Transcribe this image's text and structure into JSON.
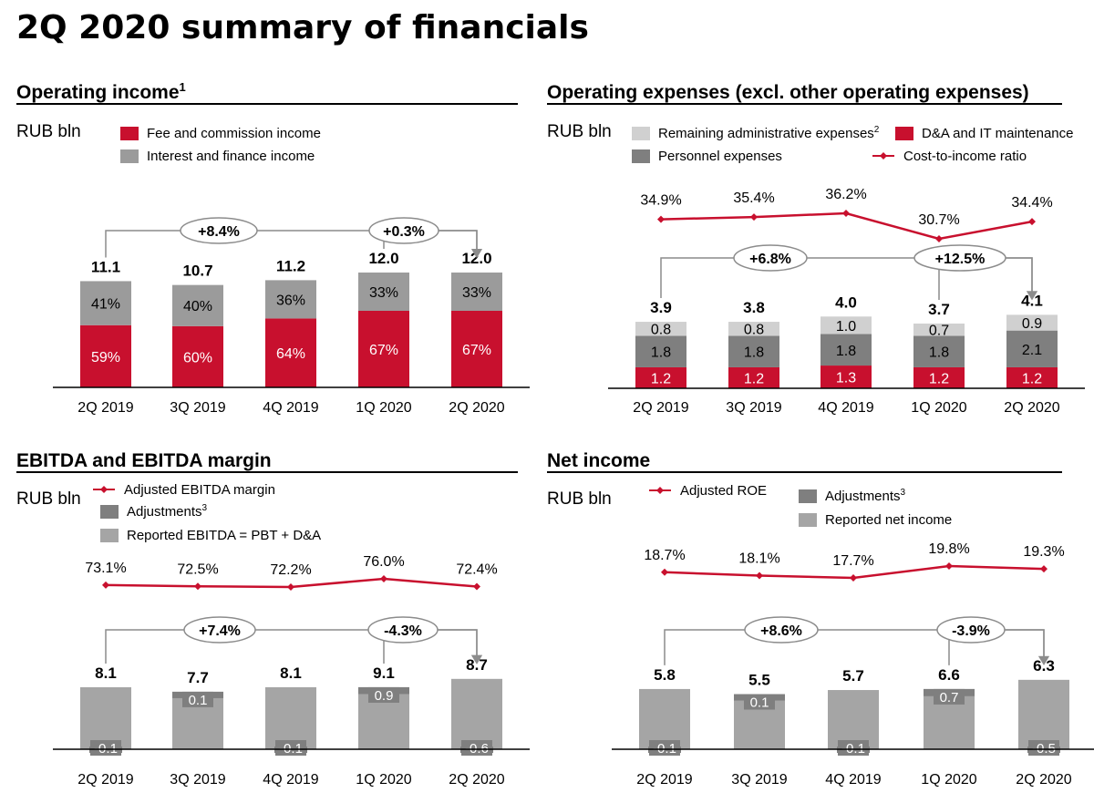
{
  "page": {
    "title": "2Q 2020 summary of financials",
    "colors": {
      "red": "#c8102e",
      "dark_gray": "#7f7f7f",
      "mid_gray": "#a5a5a5",
      "light_gray": "#d0d0d0",
      "line_gray": "#8c8c8c"
    }
  },
  "chart_data": [
    {
      "id": "operating-income",
      "type": "bar",
      "title": "Operating income",
      "title_sup": "1",
      "unit": "RUB bln",
      "categories": [
        "2Q 2019",
        "3Q 2019",
        "4Q 2019",
        "1Q 2020",
        "2Q 2020"
      ],
      "series": [
        {
          "name": "Fee and commission income",
          "color": "#c8102e",
          "values": [
            6.5,
            6.4,
            7.2,
            8.0,
            8.0
          ],
          "labels": [
            "59%",
            "60%",
            "64%",
            "67%",
            "67%"
          ]
        },
        {
          "name": "Interest and finance income",
          "color": "#9b9b9b",
          "values": [
            4.6,
            4.3,
            4.0,
            4.0,
            4.0
          ],
          "labels": [
            "41%",
            "40%",
            "36%",
            "33%",
            "33%"
          ]
        }
      ],
      "totals": [
        "11.1",
        "10.7",
        "11.2",
        "12.0",
        "12.0"
      ],
      "growth": [
        {
          "from": 0,
          "to": 4,
          "label": "+8.4%"
        },
        {
          "from": 3,
          "to": 4,
          "label": "+0.3%"
        }
      ]
    },
    {
      "id": "operating-expenses",
      "type": "bar",
      "title": "Operating expenses (excl. other operating expenses)",
      "unit": "RUB bln",
      "categories": [
        "2Q 2019",
        "3Q 2019",
        "4Q 2019",
        "1Q 2020",
        "2Q 2020"
      ],
      "series": [
        {
          "name": "D&A and IT maintenance",
          "color": "#c8102e",
          "values": [
            1.2,
            1.2,
            1.3,
            1.2,
            1.2
          ],
          "labels": [
            "1.2",
            "1.2",
            "1.3",
            "1.2",
            "1.2"
          ]
        },
        {
          "name": "Personnel expenses",
          "color": "#7f7f7f",
          "values": [
            1.8,
            1.8,
            1.8,
            1.8,
            2.1
          ],
          "labels": [
            "1.8",
            "1.8",
            "1.8",
            "1.8",
            "2.1"
          ]
        },
        {
          "name": "Remaining administrative expenses",
          "name_sup": "2",
          "color": "#d0d0d0",
          "values": [
            0.8,
            0.8,
            1.0,
            0.7,
            0.9
          ],
          "labels": [
            "0.8",
            "0.8",
            "1.0",
            "0.7",
            "0.9"
          ]
        }
      ],
      "totals": [
        "3.9",
        "3.8",
        "4.0",
        "3.7",
        "4.1"
      ],
      "line": {
        "name": "Cost-to-income ratio",
        "color": "#c8102e",
        "values": [
          34.9,
          35.4,
          36.2,
          30.7,
          34.4
        ],
        "labels": [
          "34.9%",
          "35.4%",
          "36.2%",
          "30.7%",
          "34.4%"
        ]
      },
      "growth": [
        {
          "from": 0,
          "to": 4,
          "label": "+6.8%"
        },
        {
          "from": 3,
          "to": 4,
          "label": "+12.5%"
        }
      ]
    },
    {
      "id": "ebitda",
      "type": "bar",
      "title": "EBITDA and EBITDA margin",
      "unit": "RUB bln",
      "categories": [
        "2Q 2019",
        "3Q 2019",
        "4Q 2019",
        "1Q 2020",
        "2Q 2020"
      ],
      "series": [
        {
          "name": "Reported EBITDA = PBT + D&A",
          "color": "#a5a5a5",
          "values": [
            8.2,
            7.6,
            8.2,
            8.2,
            9.3
          ]
        },
        {
          "name": "Adjustments",
          "name_sup": "3",
          "color": "#7f7f7f",
          "values": [
            -0.1,
            0.1,
            -0.1,
            0.9,
            -0.6
          ],
          "labels": [
            "-0.1",
            "0.1",
            "-0.1",
            "0.9",
            "-0.6"
          ]
        }
      ],
      "totals": [
        "8.1",
        "7.7",
        "8.1",
        "9.1",
        "8.7"
      ],
      "line": {
        "name": "Adjusted EBITDA margin",
        "color": "#c8102e",
        "values": [
          73.1,
          72.5,
          72.2,
          76.0,
          72.4
        ],
        "labels": [
          "73.1%",
          "72.5%",
          "72.2%",
          "76.0%",
          "72.4%"
        ]
      },
      "growth": [
        {
          "from": 0,
          "to": 4,
          "label": "+7.4%"
        },
        {
          "from": 3,
          "to": 4,
          "label": "-4.3%"
        }
      ]
    },
    {
      "id": "net-income",
      "type": "bar",
      "title": "Net income",
      "unit": "RUB bln",
      "categories": [
        "2Q 2019",
        "3Q 2019",
        "4Q 2019",
        "1Q 2020",
        "2Q 2020"
      ],
      "series": [
        {
          "name": "Reported net income",
          "color": "#a5a5a5",
          "values": [
            5.9,
            5.4,
            5.8,
            5.9,
            6.8
          ]
        },
        {
          "name": "Adjustments",
          "name_sup": "3",
          "color": "#7f7f7f",
          "values": [
            -0.1,
            0.1,
            -0.1,
            0.7,
            -0.5
          ],
          "labels": [
            "-0.1",
            "0.1",
            "-0.1",
            "0.7",
            "-0.5"
          ]
        }
      ],
      "totals": [
        "5.8",
        "5.5",
        "5.7",
        "6.6",
        "6.3"
      ],
      "line": {
        "name": "Adjusted ROE",
        "color": "#c8102e",
        "values": [
          18.7,
          18.1,
          17.7,
          19.8,
          19.3
        ],
        "labels": [
          "18.7%",
          "18.1%",
          "17.7%",
          "19.8%",
          "19.3%"
        ]
      },
      "growth": [
        {
          "from": 0,
          "to": 4,
          "label": "+8.6%"
        },
        {
          "from": 3,
          "to": 4,
          "label": "-3.9%"
        }
      ]
    }
  ]
}
